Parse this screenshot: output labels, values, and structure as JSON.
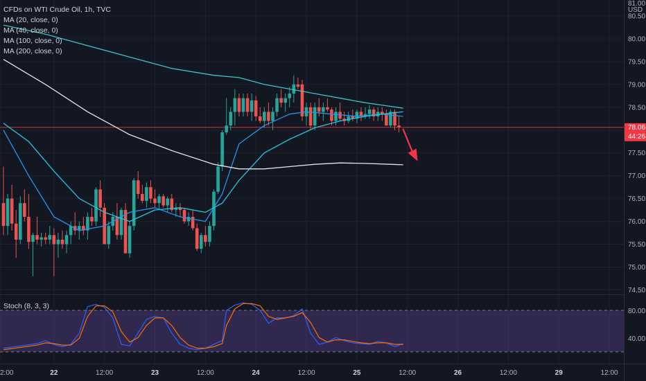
{
  "header": {
    "title": "CFDs on WTI Crude Oil, 1h, TVC",
    "indicators": [
      "MA (20, close, 0)",
      "MA (40, close, 0)",
      "MA (100, close, 0)",
      "MA (200, close, 0)"
    ],
    "currency_top": "81.00",
    "currency": "USD"
  },
  "price_badge": {
    "price": "78.06",
    "countdown": "44:26",
    "color": "#f23645"
  },
  "stoch": {
    "label": "Stoch (8, 3, 3)",
    "levels": [
      80,
      40
    ],
    "labels": [
      "80.00",
      "40.00"
    ]
  },
  "chart_data": {
    "type": "line",
    "y_ticks": [
      "80.50",
      "80.00",
      "79.50",
      "79.00",
      "78.50",
      "78.00",
      "77.50",
      "77.00",
      "76.50",
      "76.00",
      "75.50",
      "75.00",
      "74.50"
    ],
    "ylim": [
      74.4,
      80.85
    ],
    "x_ticks": [
      {
        "label": "2:00",
        "bold": false,
        "x": 0
      },
      {
        "label": "22",
        "bold": true,
        "x": 12
      },
      {
        "label": "12:00",
        "bold": false,
        "x": 24
      },
      {
        "label": "23",
        "bold": true,
        "x": 36
      },
      {
        "label": "12:00",
        "bold": false,
        "x": 48
      },
      {
        "label": "24",
        "bold": true,
        "x": 60
      },
      {
        "label": "12:00",
        "bold": false,
        "x": 72
      },
      {
        "label": "25",
        "bold": true,
        "x": 84
      },
      {
        "label": "12:00",
        "bold": false,
        "x": 96
      },
      {
        "label": "26",
        "bold": true,
        "x": 108
      },
      {
        "label": "12:00",
        "bold": false,
        "x": 120
      },
      {
        "label": "29",
        "bold": true,
        "x": 132
      },
      {
        "label": "12:00",
        "bold": false,
        "x": 144
      }
    ],
    "candles": [
      [
        76.4,
        77.2,
        75.7,
        75.9
      ],
      [
        75.9,
        76.6,
        75.7,
        76.5
      ],
      [
        76.5,
        76.8,
        75.8,
        75.95
      ],
      [
        75.95,
        76.25,
        75.2,
        75.6
      ],
      [
        75.6,
        76.55,
        75.5,
        76.4
      ],
      [
        76.4,
        76.7,
        76.0,
        76.1
      ],
      [
        76.1,
        76.6,
        75.4,
        75.55
      ],
      [
        75.55,
        75.75,
        74.8,
        75.7
      ],
      [
        75.7,
        76.1,
        75.5,
        75.6
      ],
      [
        75.6,
        75.75,
        75.45,
        75.65
      ],
      [
        75.65,
        75.75,
        75.5,
        75.6
      ],
      [
        75.6,
        75.9,
        75.5,
        75.7
      ],
      [
        75.7,
        75.85,
        74.8,
        75.5
      ],
      [
        75.5,
        75.75,
        75.2,
        75.6
      ],
      [
        75.6,
        75.8,
        75.4,
        75.5
      ],
      [
        75.5,
        75.8,
        75.3,
        75.7
      ],
      [
        75.7,
        76.0,
        75.5,
        75.9
      ],
      [
        75.9,
        76.2,
        75.7,
        75.8
      ],
      [
        75.8,
        76.0,
        75.6,
        75.9
      ],
      [
        75.9,
        76.1,
        75.7,
        75.8
      ],
      [
        75.8,
        76.2,
        75.6,
        76.1
      ],
      [
        76.1,
        76.3,
        75.9,
        76.0
      ],
      [
        76.0,
        76.75,
        75.9,
        76.7
      ],
      [
        76.7,
        76.9,
        76.1,
        76.3
      ],
      [
        76.3,
        76.4,
        75.5,
        75.5
      ],
      [
        75.5,
        76.0,
        75.4,
        75.9
      ],
      [
        75.9,
        76.2,
        75.8,
        76.1
      ],
      [
        76.1,
        76.4,
        75.6,
        75.7
      ],
      [
        75.7,
        76.3,
        75.6,
        76.25
      ],
      [
        76.25,
        76.4,
        75.3,
        75.3
      ],
      [
        75.3,
        76.0,
        75.2,
        75.9
      ],
      [
        75.9,
        76.95,
        75.8,
        76.9
      ],
      [
        76.9,
        77.1,
        76.5,
        76.6
      ],
      [
        76.6,
        76.8,
        76.4,
        76.45
      ],
      [
        76.45,
        76.85,
        76.3,
        76.75
      ],
      [
        76.75,
        76.9,
        76.4,
        76.5
      ],
      [
        76.5,
        76.7,
        76.3,
        76.4
      ],
      [
        76.4,
        76.6,
        76.25,
        76.55
      ],
      [
        76.55,
        76.6,
        76.3,
        76.35
      ],
      [
        76.35,
        76.55,
        76.2,
        76.5
      ],
      [
        76.5,
        76.6,
        76.2,
        76.25
      ],
      [
        76.25,
        76.4,
        76.1,
        76.3
      ],
      [
        76.3,
        76.4,
        76.1,
        76.25
      ],
      [
        76.25,
        76.3,
        75.95,
        76.0
      ],
      [
        76.0,
        76.2,
        75.9,
        76.1
      ],
      [
        76.1,
        76.25,
        75.8,
        75.85
      ],
      [
        75.85,
        75.95,
        75.35,
        75.4
      ],
      [
        75.4,
        75.75,
        75.3,
        75.7
      ],
      [
        75.7,
        75.9,
        75.45,
        75.55
      ],
      [
        75.55,
        76.0,
        75.45,
        75.9
      ],
      [
        75.9,
        76.7,
        75.8,
        76.65
      ],
      [
        76.65,
        77.3,
        76.6,
        77.2
      ],
      [
        77.2,
        78.0,
        77.1,
        77.95
      ],
      [
        77.95,
        78.7,
        77.9,
        78.1
      ],
      [
        78.1,
        78.5,
        78.0,
        78.4
      ],
      [
        78.4,
        78.9,
        78.1,
        78.7
      ],
      [
        78.7,
        78.8,
        78.3,
        78.4
      ],
      [
        78.4,
        78.8,
        78.3,
        78.7
      ],
      [
        78.7,
        78.8,
        78.3,
        78.4
      ],
      [
        78.4,
        78.8,
        78.2,
        78.65
      ],
      [
        78.65,
        78.75,
        78.2,
        78.3
      ],
      [
        78.3,
        78.5,
        78.15,
        78.2
      ],
      [
        78.2,
        78.5,
        78.05,
        78.4
      ],
      [
        78.4,
        78.6,
        78.1,
        78.2
      ],
      [
        78.2,
        78.5,
        78.0,
        78.4
      ],
      [
        78.4,
        78.8,
        78.3,
        78.7
      ],
      [
        78.7,
        78.9,
        78.5,
        78.6
      ],
      [
        78.6,
        78.8,
        78.4,
        78.7
      ],
      [
        78.7,
        78.95,
        78.5,
        78.8
      ],
      [
        78.8,
        79.2,
        78.6,
        79.0
      ],
      [
        79.0,
        79.15,
        78.9,
        78.95
      ],
      [
        79.0,
        79.1,
        78.2,
        78.3
      ],
      [
        78.3,
        78.6,
        78.1,
        78.5
      ],
      [
        78.5,
        78.6,
        78.0,
        78.1
      ],
      [
        78.1,
        78.6,
        78.0,
        78.5
      ],
      [
        78.5,
        78.7,
        78.3,
        78.4
      ],
      [
        78.4,
        78.6,
        78.2,
        78.5
      ],
      [
        78.5,
        78.7,
        78.4,
        78.45
      ],
      [
        78.45,
        78.5,
        78.1,
        78.2
      ],
      [
        78.2,
        78.5,
        78.1,
        78.4
      ],
      [
        78.4,
        78.6,
        78.2,
        78.25
      ],
      [
        78.25,
        78.4,
        78.1,
        78.2
      ],
      [
        78.2,
        78.4,
        78.15,
        78.3
      ],
      [
        78.3,
        78.45,
        78.2,
        78.25
      ],
      [
        78.25,
        78.45,
        78.15,
        78.4
      ],
      [
        78.4,
        78.5,
        78.2,
        78.3
      ],
      [
        78.3,
        78.5,
        78.25,
        78.35
      ],
      [
        78.35,
        78.55,
        78.25,
        78.45
      ],
      [
        78.45,
        78.5,
        78.2,
        78.3
      ],
      [
        78.3,
        78.5,
        78.2,
        78.4
      ],
      [
        78.4,
        78.5,
        78.2,
        78.35
      ],
      [
        78.35,
        78.45,
        78.1,
        78.1
      ],
      [
        78.1,
        78.45,
        78.05,
        78.4
      ],
      [
        78.4,
        78.45,
        78.0,
        78.1
      ],
      [
        78.1,
        78.3,
        77.95,
        78.06
      ]
    ],
    "series": [
      {
        "color": "#2196f3",
        "points": [
          [
            0,
            78.0
          ],
          [
            6,
            77.0
          ],
          [
            12,
            76.1
          ],
          [
            18,
            75.8
          ],
          [
            24,
            75.9
          ],
          [
            30,
            76.2
          ],
          [
            36,
            76.3
          ],
          [
            42,
            76.1
          ],
          [
            48,
            76.0
          ],
          [
            52,
            76.6
          ],
          [
            56,
            77.7
          ],
          [
            62,
            78.1
          ],
          [
            68,
            78.35
          ],
          [
            72,
            78.4
          ],
          [
            78,
            78.35
          ],
          [
            84,
            78.3
          ],
          [
            90,
            78.35
          ],
          [
            95,
            78.3
          ]
        ]
      },
      {
        "color": "#26c6da",
        "points": [
          [
            0,
            78.15
          ],
          [
            6,
            77.75
          ],
          [
            12,
            77.1
          ],
          [
            18,
            76.5
          ],
          [
            24,
            76.2
          ],
          [
            30,
            76.0
          ],
          [
            36,
            76.25
          ],
          [
            42,
            76.3
          ],
          [
            48,
            76.2
          ],
          [
            52,
            76.4
          ],
          [
            56,
            76.9
          ],
          [
            62,
            77.5
          ],
          [
            68,
            77.8
          ],
          [
            74,
            78.05
          ],
          [
            80,
            78.2
          ],
          [
            86,
            78.3
          ],
          [
            90,
            78.35
          ],
          [
            95,
            78.4
          ]
        ]
      },
      {
        "color": "#3fc1c9",
        "points": [
          [
            0,
            80.3
          ],
          [
            10,
            80.1
          ],
          [
            20,
            79.85
          ],
          [
            30,
            79.6
          ],
          [
            40,
            79.35
          ],
          [
            50,
            79.2
          ],
          [
            56,
            79.15
          ],
          [
            62,
            79.0
          ],
          [
            68,
            78.9
          ],
          [
            74,
            78.8
          ],
          [
            80,
            78.7
          ],
          [
            86,
            78.6
          ],
          [
            92,
            78.52
          ],
          [
            95,
            78.48
          ]
        ]
      },
      {
        "color": "#e6e6e6",
        "points": [
          [
            0,
            79.55
          ],
          [
            10,
            79.0
          ],
          [
            20,
            78.4
          ],
          [
            30,
            77.9
          ],
          [
            40,
            77.55
          ],
          [
            50,
            77.25
          ],
          [
            56,
            77.15
          ],
          [
            62,
            77.15
          ],
          [
            68,
            77.2
          ],
          [
            74,
            77.25
          ],
          [
            80,
            77.28
          ],
          [
            86,
            77.27
          ],
          [
            92,
            77.25
          ],
          [
            95,
            77.24
          ]
        ]
      }
    ],
    "stoch_k": [
      [
        0,
        30
      ],
      [
        4,
        33
      ],
      [
        8,
        36
      ],
      [
        10,
        40
      ],
      [
        12,
        35
      ],
      [
        14,
        32
      ],
      [
        16,
        35
      ],
      [
        18,
        50
      ],
      [
        20,
        85
      ],
      [
        22,
        88
      ],
      [
        24,
        84
      ],
      [
        26,
        70
      ],
      [
        28,
        35
      ],
      [
        30,
        33
      ],
      [
        32,
        50
      ],
      [
        34,
        68
      ],
      [
        36,
        72
      ],
      [
        38,
        70
      ],
      [
        40,
        50
      ],
      [
        42,
        35
      ],
      [
        44,
        30
      ],
      [
        46,
        28
      ],
      [
        48,
        30
      ],
      [
        50,
        35
      ],
      [
        52,
        40
      ],
      [
        53,
        80
      ],
      [
        55,
        87
      ],
      [
        57,
        90
      ],
      [
        59,
        88
      ],
      [
        61,
        80
      ],
      [
        63,
        63
      ],
      [
        65,
        70
      ],
      [
        67,
        70
      ],
      [
        69,
        73
      ],
      [
        71,
        82
      ],
      [
        73,
        50
      ],
      [
        75,
        35
      ],
      [
        77,
        38
      ],
      [
        79,
        44
      ],
      [
        81,
        40
      ],
      [
        83,
        37
      ],
      [
        85,
        36
      ],
      [
        87,
        35
      ],
      [
        89,
        39
      ],
      [
        91,
        37
      ],
      [
        93,
        32
      ],
      [
        95,
        36
      ]
    ],
    "stoch_d": [
      [
        0,
        28
      ],
      [
        4,
        31
      ],
      [
        8,
        34
      ],
      [
        10,
        37
      ],
      [
        12,
        36
      ],
      [
        14,
        34
      ],
      [
        16,
        34
      ],
      [
        18,
        43
      ],
      [
        20,
        72
      ],
      [
        22,
        86
      ],
      [
        24,
        86
      ],
      [
        26,
        78
      ],
      [
        28,
        52
      ],
      [
        30,
        38
      ],
      [
        32,
        44
      ],
      [
        34,
        60
      ],
      [
        36,
        70
      ],
      [
        38,
        70
      ],
      [
        40,
        60
      ],
      [
        42,
        44
      ],
      [
        44,
        34
      ],
      [
        46,
        30
      ],
      [
        48,
        30
      ],
      [
        50,
        32
      ],
      [
        52,
        36
      ],
      [
        53,
        60
      ],
      [
        55,
        82
      ],
      [
        57,
        89
      ],
      [
        59,
        89
      ],
      [
        61,
        86
      ],
      [
        63,
        72
      ],
      [
        65,
        68
      ],
      [
        67,
        70
      ],
      [
        69,
        72
      ],
      [
        71,
        77
      ],
      [
        73,
        64
      ],
      [
        75,
        44
      ],
      [
        77,
        38
      ],
      [
        79,
        41
      ],
      [
        81,
        41
      ],
      [
        83,
        39
      ],
      [
        85,
        37
      ],
      [
        87,
        36
      ],
      [
        89,
        37
      ],
      [
        91,
        37
      ],
      [
        93,
        35
      ],
      [
        95,
        35
      ]
    ]
  }
}
